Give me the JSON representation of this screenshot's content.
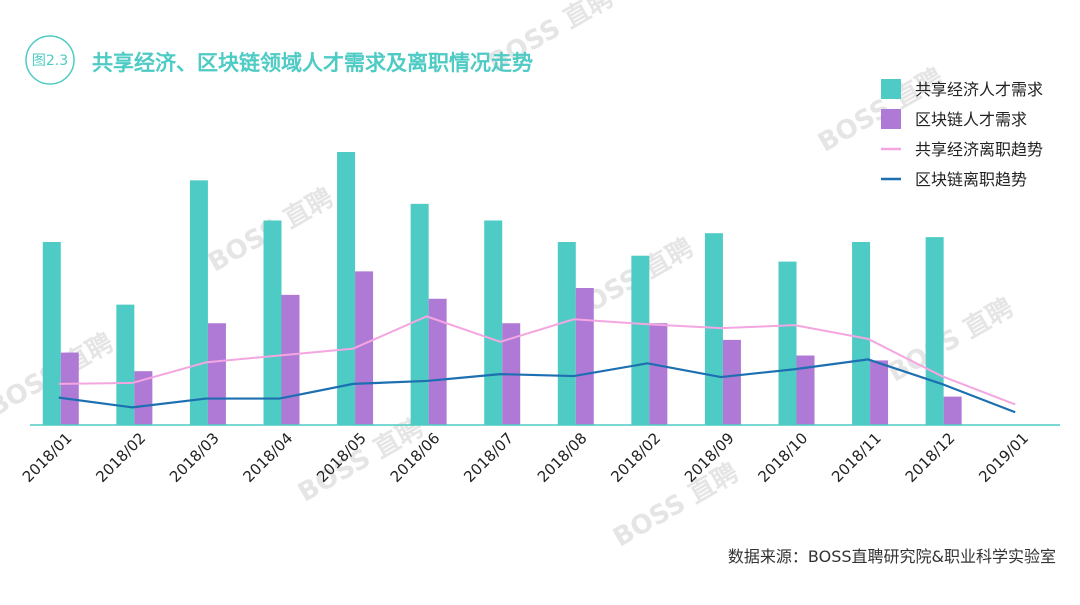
{
  "figure": {
    "badge": "图2.3",
    "title": "共享经济、区块链领域人才需求及离职情况走势",
    "source": "数据来源：BOSS直聘研究院&职业科学实验室",
    "watermark": "BOSS 直聘"
  },
  "colors": {
    "teal": "#4ECBC4",
    "purple": "#AF7AD6",
    "pink": "#F4A6E0",
    "blue": "#1C6FB0",
    "title": "#4ECBC4",
    "axis": "#4ECBC4"
  },
  "chart_data": {
    "type": "bar",
    "title": "共享经济、区块链领域人才需求及离职情况走势",
    "categories": [
      "2018/01",
      "2018/02",
      "2018/03",
      "2018/04",
      "2018/05",
      "2018/06",
      "2018/07",
      "2018/08",
      "2018/02",
      "2018/09",
      "2018/10",
      "2018/11",
      "2018/12",
      "2019/01"
    ],
    "ylim": [
      0,
      280
    ],
    "grid": false,
    "legend_position": "top-right",
    "series": [
      {
        "name": "共享经济人才需求",
        "kind": "bar",
        "values": [
          187,
          123,
          250,
          209,
          279,
          226,
          209,
          187,
          173,
          196,
          167,
          187,
          192,
          null
        ]
      },
      {
        "name": "区块链人才需求",
        "kind": "bar",
        "values": [
          74,
          55,
          104,
          133,
          157,
          129,
          104,
          140,
          104,
          87,
          71,
          66,
          29,
          null
        ]
      },
      {
        "name": "共享经济离职趋势",
        "kind": "line",
        "values": [
          42,
          43,
          64,
          71,
          78,
          111,
          85,
          108,
          103,
          99,
          102,
          88,
          50,
          21
        ]
      },
      {
        "name": "区块链离职趋势",
        "kind": "line",
        "values": [
          28,
          18,
          27,
          27,
          42,
          45,
          52,
          50,
          63,
          49,
          57,
          67,
          42,
          13
        ]
      }
    ]
  }
}
